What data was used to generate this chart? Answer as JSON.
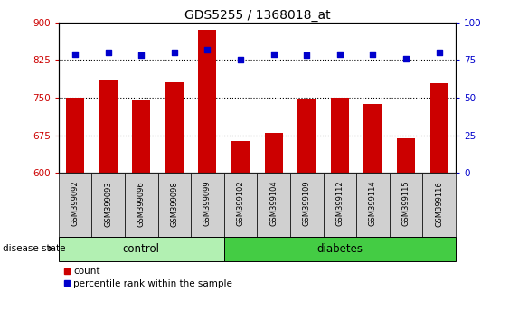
{
  "title": "GDS5255 / 1368018_at",
  "samples": [
    "GSM399092",
    "GSM399093",
    "GSM399096",
    "GSM399098",
    "GSM399099",
    "GSM399102",
    "GSM399104",
    "GSM399109",
    "GSM399112",
    "GSM399114",
    "GSM399115",
    "GSM399116"
  ],
  "counts": [
    750,
    785,
    745,
    780,
    885,
    663,
    680,
    748,
    750,
    738,
    668,
    778
  ],
  "percentile_ranks": [
    79,
    80,
    78,
    80,
    82,
    75,
    79,
    78,
    79,
    79,
    76,
    80
  ],
  "bar_color": "#cc0000",
  "dot_color": "#0000cc",
  "ylim_left": [
    600,
    900
  ],
  "yticks_left": [
    600,
    675,
    750,
    825,
    900
  ],
  "ylim_right": [
    0,
    100
  ],
  "yticks_right": [
    0,
    25,
    50,
    75,
    100
  ],
  "control_color": "#b2f0b2",
  "diabetes_color": "#44cc44",
  "xlabel_area_color": "#d0d0d0",
  "control_label": "control",
  "diabetes_label": "diabetes",
  "disease_state_label": "disease state",
  "legend_count": "count",
  "legend_percentile": "percentile rank within the sample",
  "figsize": [
    5.63,
    3.54
  ],
  "dpi": 100
}
